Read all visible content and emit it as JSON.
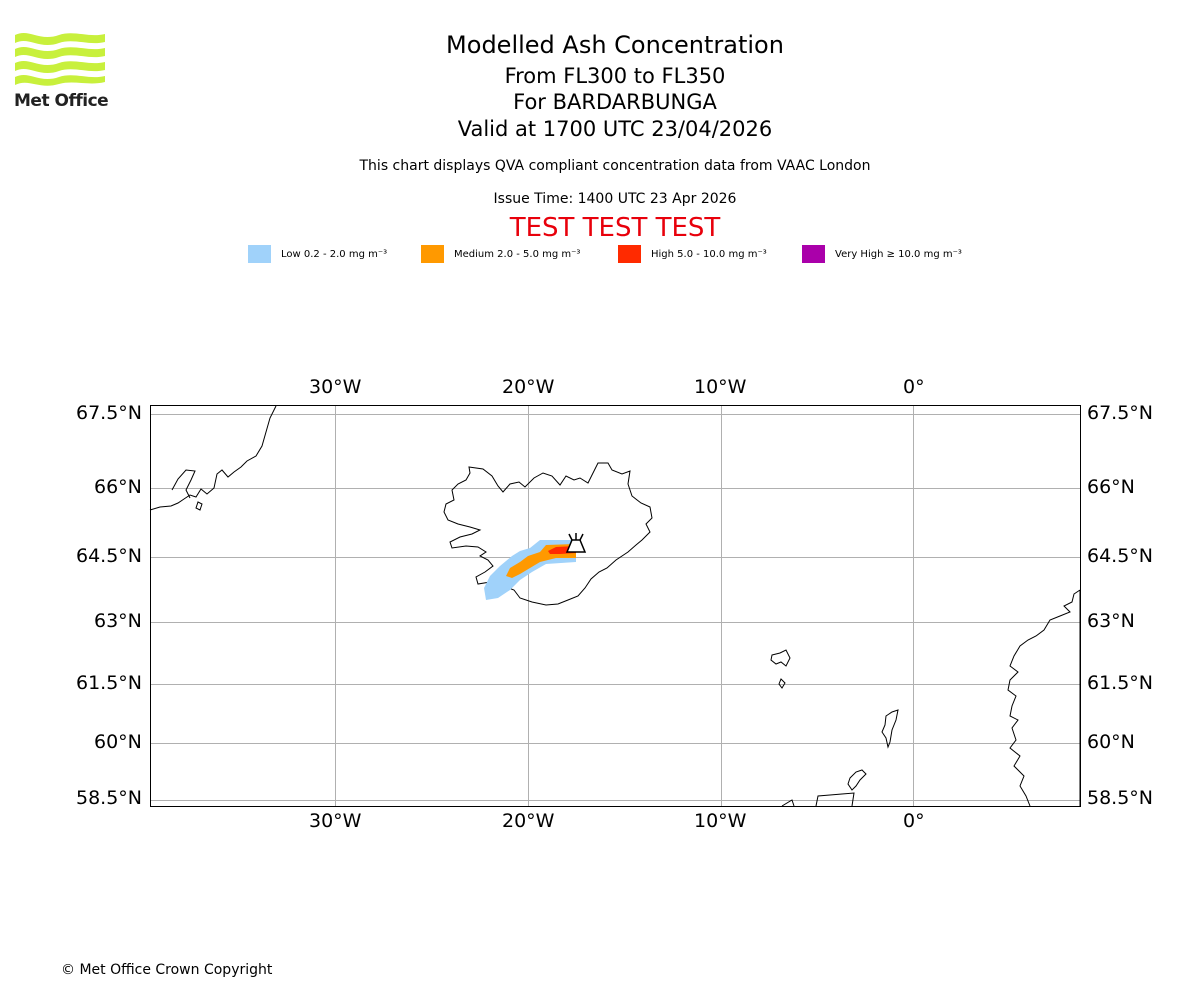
{
  "header": {
    "title": "Modelled Ash Concentration",
    "levels": "From FL300 to FL350",
    "volcano": "For BARDARBUNGA",
    "valid": "Valid at 1700 UTC 23/04/2026",
    "subtitle": "This chart displays QVA compliant concentration data from VAAC London",
    "issue_time": "Issue Time: 1400 UTC 23 Apr 2026",
    "test_banner": "TEST TEST TEST"
  },
  "logo": {
    "text": "Met Office",
    "wave_color": "#c8f03c"
  },
  "legend": [
    {
      "label": "Low 0.2 - 2.0 mg m⁻³",
      "color": "#a0d2fa"
    },
    {
      "label": "Medium 2.0 - 5.0 mg m⁻³",
      "color": "#ff9900"
    },
    {
      "label": "High 5.0 - 10.0 mg m⁻³",
      "color": "#ff2a00"
    },
    {
      "label": "Very High ≥ 10.0 mg m⁻³",
      "color": "#aa00aa"
    }
  ],
  "map": {
    "lon_labels": [
      "30°W",
      "20°W",
      "10°W",
      "0°"
    ],
    "lat_labels": [
      "67.5°N",
      "66°N",
      "64.5°N",
      "63°N",
      "61.5°N",
      "60°N",
      "58.5°N"
    ]
  },
  "footer": {
    "copyright": "© Met Office Crown Copyright"
  }
}
